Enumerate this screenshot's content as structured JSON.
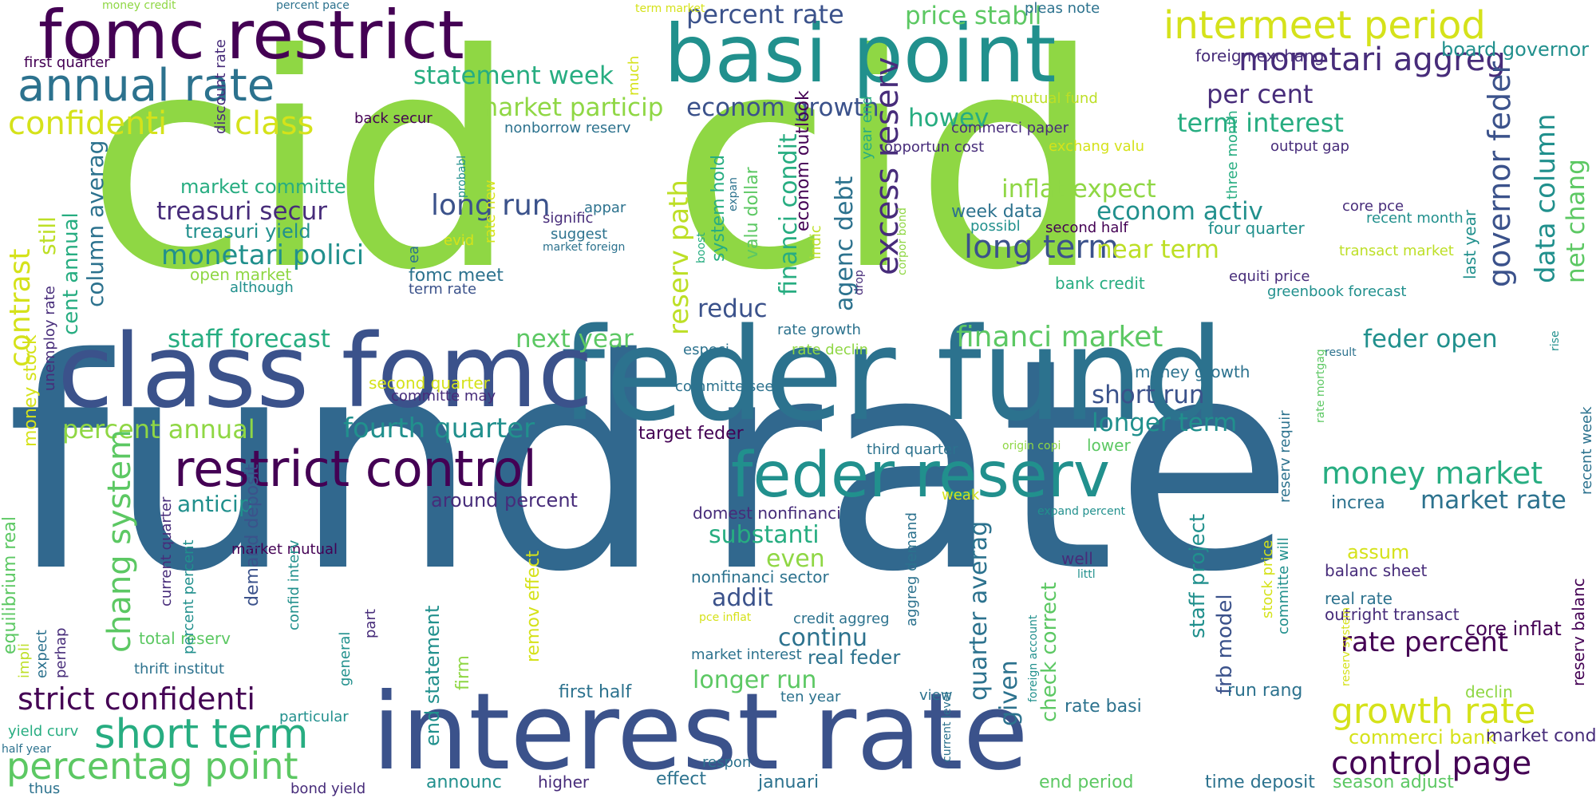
{
  "palette": {
    "c1": "#440154",
    "c2": "#472c7a",
    "c3": "#3b528b",
    "c4": "#2c728e",
    "c5": "#21908d",
    "c6": "#27ad81",
    "c7": "#5cc863",
    "c8": "#8fd744",
    "c9": "#bddf26",
    "c10": "#d5e21a"
  },
  "words": [
    {
      "text": "cid"
    },
    {
      "text": "cid"
    },
    {
      "text": "fund"
    },
    {
      "text": "rate"
    },
    {
      "text": "feder fund"
    },
    {
      "text": "interest rate"
    },
    {
      "text": "class fomc"
    },
    {
      "text": "basi point"
    },
    {
      "text": "fomc restrict"
    },
    {
      "text": "feder reserv"
    },
    {
      "text": "restrict control"
    },
    {
      "text": "intermeet period"
    },
    {
      "text": "annual rate"
    },
    {
      "text": "short term"
    },
    {
      "text": "growth rate"
    },
    {
      "text": "percentag point"
    },
    {
      "text": "strict confidenti"
    },
    {
      "text": "control page"
    },
    {
      "text": "money market"
    },
    {
      "text": "long term"
    },
    {
      "text": "financi market"
    },
    {
      "text": "confidenti"
    },
    {
      "text": "class"
    },
    {
      "text": "monetari aggreg"
    },
    {
      "text": "per cent"
    },
    {
      "text": "term interest"
    },
    {
      "text": "staff forecast"
    },
    {
      "text": "fourth quarter"
    },
    {
      "text": "percent annual"
    },
    {
      "text": "treasuri secur"
    },
    {
      "text": "monetari polici"
    },
    {
      "text": "statement week"
    },
    {
      "text": "market particip"
    },
    {
      "text": "econom growth"
    },
    {
      "text": "percent rate"
    },
    {
      "text": "price stabil"
    },
    {
      "text": "howev"
    },
    {
      "text": "inflat expect"
    },
    {
      "text": "econom activ"
    },
    {
      "text": "near term"
    },
    {
      "text": "feder open"
    },
    {
      "text": "short run"
    },
    {
      "text": "longer term"
    },
    {
      "text": "next year"
    },
    {
      "text": "reduc"
    },
    {
      "text": "long run"
    },
    {
      "text": "anticip"
    },
    {
      "text": "around percent"
    },
    {
      "text": "substanti"
    },
    {
      "text": "even"
    },
    {
      "text": "addit"
    },
    {
      "text": "continu"
    },
    {
      "text": "longer run"
    },
    {
      "text": "real feder"
    },
    {
      "text": "market committe"
    },
    {
      "text": "treasuri yield"
    },
    {
      "text": "open market"
    },
    {
      "text": "although"
    },
    {
      "text": "fomc meet"
    },
    {
      "text": "term rate"
    },
    {
      "text": "rate percent"
    },
    {
      "text": "market rate"
    },
    {
      "text": "increa"
    },
    {
      "text": "commerci bank"
    },
    {
      "text": "market condit"
    },
    {
      "text": "assum"
    },
    {
      "text": "balanc sheet"
    },
    {
      "text": "real rate"
    },
    {
      "text": "outright transact"
    },
    {
      "text": "core inflat"
    },
    {
      "text": "run rang"
    },
    {
      "text": "rate basi"
    },
    {
      "text": "well"
    },
    {
      "text": "declin"
    },
    {
      "text": "end period"
    },
    {
      "text": "time deposit"
    },
    {
      "text": "season adjust"
    },
    {
      "text": "board governor"
    },
    {
      "text": "foreign exchang"
    },
    {
      "text": "pleas note"
    },
    {
      "text": "commerci paper"
    },
    {
      "text": "mutual fund"
    },
    {
      "text": "opportun cost"
    },
    {
      "text": "exchang valu"
    },
    {
      "text": "output gap"
    },
    {
      "text": "four quarter"
    },
    {
      "text": "core pce"
    },
    {
      "text": "recent month"
    },
    {
      "text": "transact market"
    },
    {
      "text": "equiti price"
    },
    {
      "text": "greenbook forecast"
    },
    {
      "text": "bank credit"
    },
    {
      "text": "week data"
    },
    {
      "text": "possibl"
    },
    {
      "text": "second half"
    },
    {
      "text": "rate growth"
    },
    {
      "text": "rate declin"
    },
    {
      "text": "especi"
    },
    {
      "text": "committe seek"
    },
    {
      "text": "target feder"
    },
    {
      "text": "money growth"
    },
    {
      "text": "lower"
    },
    {
      "text": "third quarter"
    },
    {
      "text": "domest nonfinanci"
    },
    {
      "text": "nonfinanci sector"
    },
    {
      "text": "market interest"
    },
    {
      "text": "credit aggreg"
    },
    {
      "text": "pce inflat"
    },
    {
      "text": "weak"
    },
    {
      "text": "expand percent"
    },
    {
      "text": "littl"
    },
    {
      "text": "origin copi"
    },
    {
      "text": "result"
    },
    {
      "text": "view"
    },
    {
      "text": "ten year"
    },
    {
      "text": "respon"
    },
    {
      "text": "first half"
    },
    {
      "text": "announc"
    },
    {
      "text": "higher"
    },
    {
      "text": "effect"
    },
    {
      "text": "januari"
    },
    {
      "text": "thus"
    },
    {
      "text": "bond yield"
    },
    {
      "text": "particular"
    },
    {
      "text": "yield curv"
    },
    {
      "text": "half year"
    },
    {
      "text": "thrift institut"
    },
    {
      "text": "total reserv"
    },
    {
      "text": "market mutual"
    },
    {
      "text": "committe may"
    },
    {
      "text": "second quarter"
    },
    {
      "text": "first quarter"
    },
    {
      "text": "money credit"
    },
    {
      "text": "percent pace"
    },
    {
      "text": "term market"
    },
    {
      "text": "back secur"
    },
    {
      "text": "nonborrow reserv"
    },
    {
      "text": "evid"
    },
    {
      "text": "appar"
    },
    {
      "text": "signific"
    },
    {
      "text": "suggest"
    },
    {
      "text": "market foreign"
    },
    {
      "text": "excess reserv"
    },
    {
      "text": "governor feder"
    },
    {
      "text": "data column"
    },
    {
      "text": "net chang"
    },
    {
      "text": "contrast"
    },
    {
      "text": "cent annual"
    },
    {
      "text": "column averag"
    },
    {
      "text": "still"
    },
    {
      "text": "reserv path"
    },
    {
      "text": "financi condit"
    },
    {
      "text": "agenc debt"
    },
    {
      "text": "chang system"
    },
    {
      "text": "quarter averag"
    },
    {
      "text": "given"
    },
    {
      "text": "check correct"
    },
    {
      "text": "staff project"
    },
    {
      "text": "frb model"
    },
    {
      "text": "end statement"
    },
    {
      "text": "firm"
    },
    {
      "text": "remov effect"
    },
    {
      "text": "last year"
    },
    {
      "text": "rise"
    },
    {
      "text": "recent week"
    },
    {
      "text": "reserv balanc"
    },
    {
      "text": "three month"
    },
    {
      "text": "year end"
    },
    {
      "text": "corpor bond"
    },
    {
      "text": "drop"
    },
    {
      "text": "indic"
    },
    {
      "text": "econom outlook"
    },
    {
      "text": "valu dollar"
    },
    {
      "text": "system hold"
    },
    {
      "text": "expan"
    },
    {
      "text": "boost"
    },
    {
      "text": "aggreg demand"
    },
    {
      "text": "rate mortgag"
    },
    {
      "text": "reserv requir"
    },
    {
      "text": "stock price"
    },
    {
      "text": "committe will"
    },
    {
      "text": "reserv system"
    },
    {
      "text": "foreign account"
    },
    {
      "text": "current level"
    },
    {
      "text": "general"
    },
    {
      "text": "part"
    },
    {
      "text": "confid interv"
    },
    {
      "text": "demand deposit"
    },
    {
      "text": "current quarter"
    },
    {
      "text": "percent percent"
    },
    {
      "text": "perhap"
    },
    {
      "text": "expect"
    },
    {
      "text": "impli"
    },
    {
      "text": "equilibrium real"
    },
    {
      "text": "money stock"
    },
    {
      "text": "unemploy rate"
    },
    {
      "text": "discount rate"
    },
    {
      "text": "much"
    },
    {
      "text": "ea"
    },
    {
      "text": "probabl"
    },
    {
      "text": "rate new"
    },
    {
      "text": "adjust remov"
    }
  ]
}
